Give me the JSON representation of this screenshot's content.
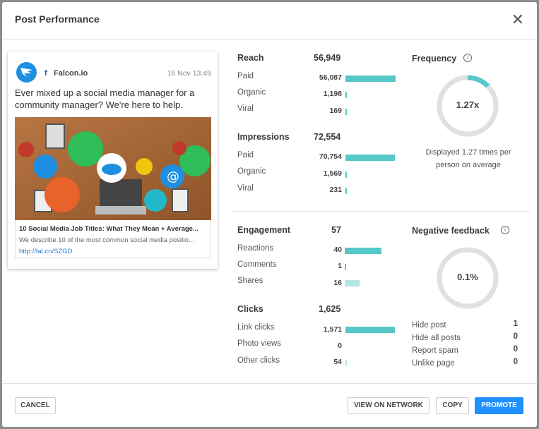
{
  "modal": {
    "title": "Post Performance"
  },
  "post": {
    "page_name": "Falcon.io",
    "network_icon": "facebook-icon",
    "date": "16 Nov 13:49",
    "text": "Ever mixed up a social media manager for a community manager? We're here to help.",
    "link_title": "10 Social Media Job Titles: What They Mean + Average...",
    "link_description": "We describe 10 of the most common social media positio...",
    "link_url": "http://fal.cn/SZGD"
  },
  "reach": {
    "label": "Reach",
    "total": "56,949",
    "rows": [
      {
        "label": "Paid",
        "value": "56,087",
        "fraction": 0.985
      },
      {
        "label": "Organic",
        "value": "1,198",
        "fraction": 0.021
      },
      {
        "label": "Viral",
        "value": "169",
        "fraction": 0.003
      }
    ]
  },
  "impressions": {
    "label": "Impressions",
    "total": "72,554",
    "rows": [
      {
        "label": "Paid",
        "value": "70,754",
        "fraction": 0.975
      },
      {
        "label": "Organic",
        "value": "1,569",
        "fraction": 0.022
      },
      {
        "label": "Viral",
        "value": "231",
        "fraction": 0.003
      }
    ]
  },
  "engagement": {
    "label": "Engagement",
    "total": "57",
    "rows": [
      {
        "label": "Reactions",
        "value": "40",
        "fraction": 0.7
      },
      {
        "label": "Comments",
        "value": "1",
        "fraction": 0.02
      },
      {
        "label": "Shares",
        "value": "16",
        "fraction": 0.28
      }
    ]
  },
  "clicks": {
    "label": "Clicks",
    "total": "1,625",
    "rows": [
      {
        "label": "Link clicks",
        "value": "1,571",
        "fraction": 0.967
      },
      {
        "label": "Photo views",
        "value": "0",
        "fraction": 0
      },
      {
        "label": "Other clicks",
        "value": "54",
        "fraction": 0.033
      }
    ]
  },
  "frequency": {
    "title": "Frequency",
    "value": "1.27x",
    "fraction": 0.127,
    "caption": "Displayed 1.27 times per person on average"
  },
  "negative": {
    "title": "Negative feedback",
    "value": "0.1%",
    "rows": [
      {
        "label": "Hide post",
        "value": "1"
      },
      {
        "label": "Hide all posts",
        "value": "0"
      },
      {
        "label": "Report spam",
        "value": "0"
      },
      {
        "label": "Unlike page",
        "value": "0"
      }
    ]
  },
  "footer": {
    "cancel": "CANCEL",
    "view_on_network": "VIEW ON NETWORK",
    "copy": "COPY",
    "promote": "PROMOTE"
  },
  "colors": {
    "accent": "#1e90ff",
    "bar": "#56c8c8",
    "bar_light": "#b3e6e6",
    "ring": "#e0e0e0"
  }
}
